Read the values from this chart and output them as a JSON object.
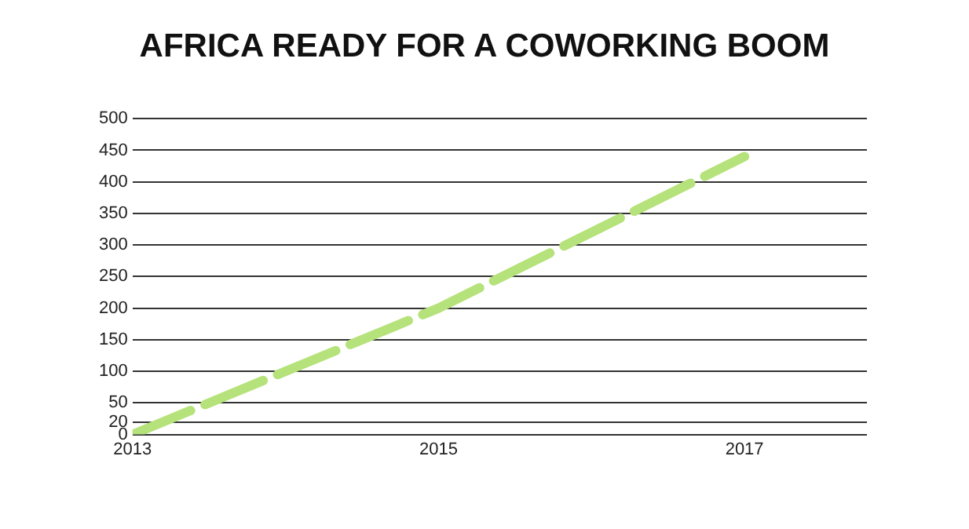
{
  "chart_data": {
    "type": "line",
    "title": "AFRICA READY FOR A COWORKING BOOM",
    "x": [
      2013,
      2015,
      2017
    ],
    "series": [
      {
        "color": "#b5e27a",
        "values": [
          0,
          200,
          440
        ]
      }
    ],
    "xlim": [
      2013,
      2017.8
    ],
    "xticks": [
      2013,
      2015,
      2017
    ],
    "ylim": [
      0,
      500
    ],
    "yticks": [
      0,
      20,
      50,
      100,
      150,
      200,
      250,
      300,
      350,
      400,
      450,
      500
    ],
    "grid": "y",
    "legend": false,
    "marker": "none",
    "line_style": "dashed"
  }
}
